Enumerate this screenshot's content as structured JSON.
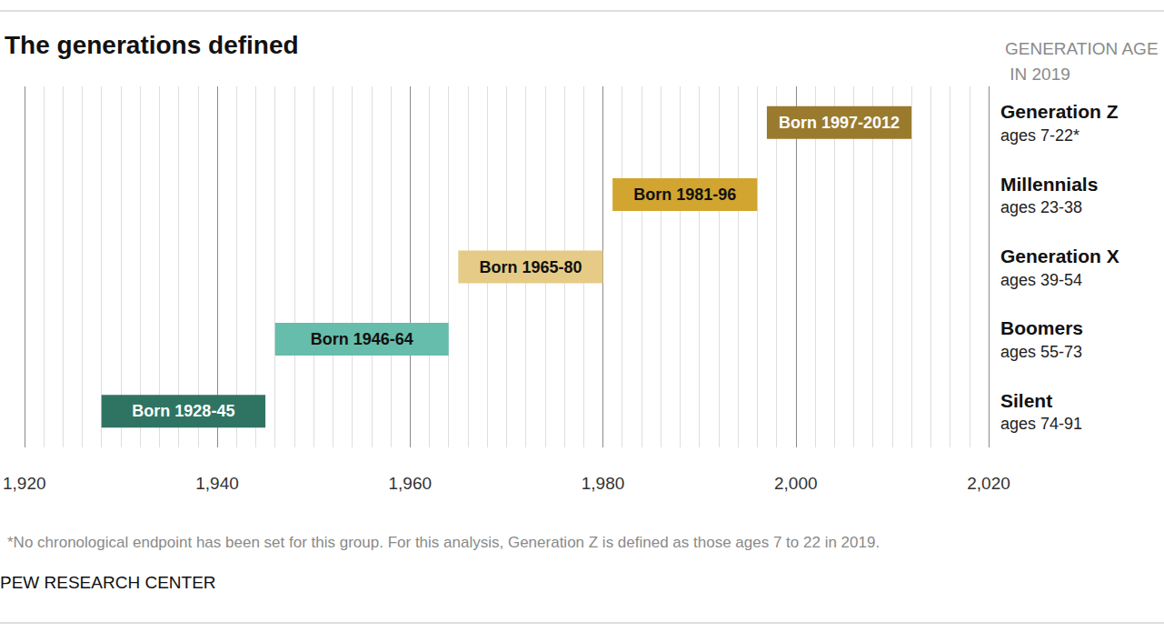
{
  "chart_data": {
    "type": "range_bar",
    "orientation": "horizontal",
    "title": "The generations defined",
    "subtitle": "GENERATION AGE IN 2019",
    "categories": [
      "Generation Z",
      "Millennials",
      "Generation X",
      "Boomers",
      "Silent"
    ],
    "age_labels": [
      "ages 7-22*",
      "ages 23-38",
      "ages 39-54",
      "ages 55-73",
      "ages 74-91"
    ],
    "start": [
      1997,
      1981,
      1965,
      1946,
      1928
    ],
    "end": [
      2012,
      1996,
      1980,
      1964,
      1945
    ],
    "value_labels": [
      "Born 1997-2012",
      "Born 1981-96",
      "Born 1965-80",
      "Born 1946-64",
      "Born 1928-45"
    ],
    "colors": [
      "#9a7b2e",
      "#d1a530",
      "#e6cb86",
      "#67bdab",
      "#2f7462"
    ],
    "xlim": [
      1920,
      2020
    ],
    "xticks": [
      1920,
      1940,
      1960,
      1980,
      2000,
      2020
    ],
    "grid": true,
    "data_labels": true,
    "tick_labels": "x",
    "note": "*No chronological endpoint has been set for this group. For this analysis, Generation Z is defined as those ages 7 to 22 in 2019.",
    "source": "PEW RESEARCH CENTER"
  }
}
